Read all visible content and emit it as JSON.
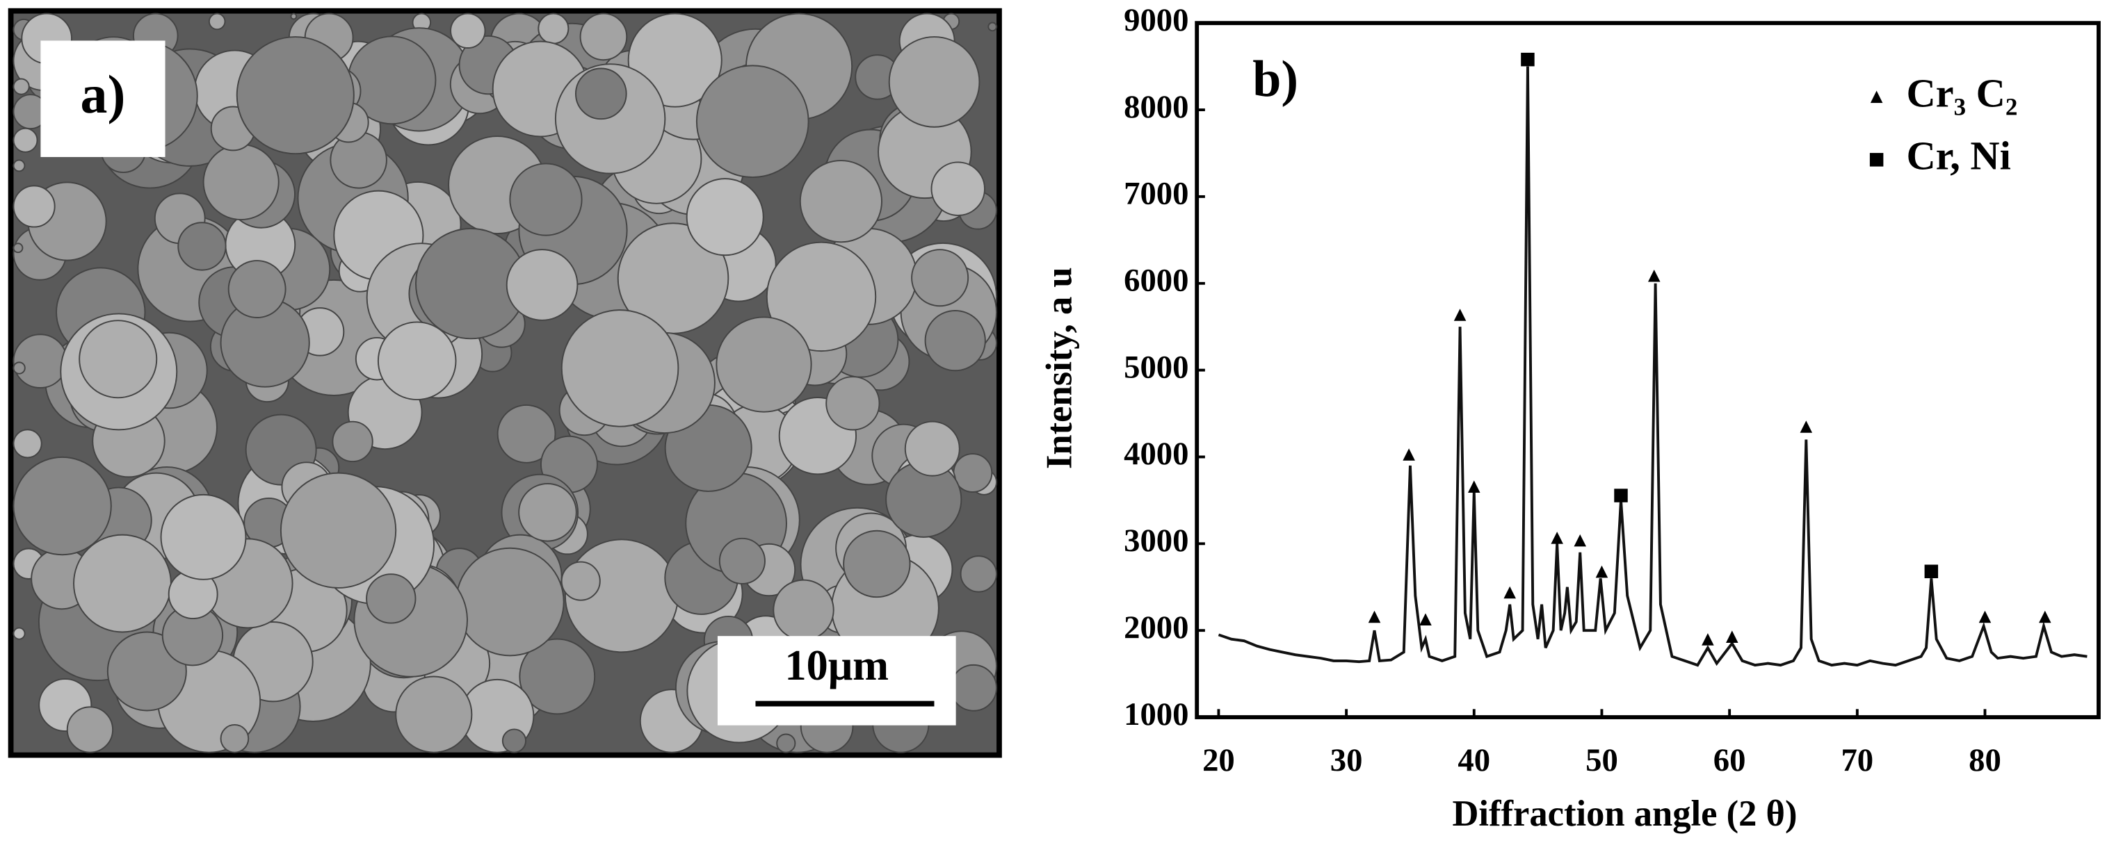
{
  "panel_a": {
    "label": "a)",
    "scale_bar": "10μm"
  },
  "chart_data": {
    "type": "line",
    "panel_label": "b)",
    "xlabel": "Diffraction angle (2 θ)",
    "ylabel": "Intensity, a u",
    "xlim": [
      18.3,
      88.9
    ],
    "ylim": [
      1000,
      9000
    ],
    "xticks": [
      20,
      30,
      40,
      50,
      60,
      70,
      80
    ],
    "yticks": [
      1000,
      2000,
      3000,
      4000,
      5000,
      6000,
      7000,
      8000,
      9000
    ],
    "grid": false,
    "legend": "upper right",
    "series": [
      {
        "color": "#111111",
        "x": [
          20,
          21,
          22,
          23,
          24,
          25,
          26,
          27,
          28,
          29,
          30,
          31,
          31.8,
          32.2,
          32.6,
          33.5,
          34.5,
          35.0,
          35.4,
          35.9,
          36.2,
          36.5,
          37.5,
          38.5,
          38.9,
          39.3,
          39.7,
          40.0,
          40.3,
          41,
          42,
          42.5,
          42.8,
          43.1,
          43.8,
          44.2,
          44.6,
          45.0,
          45.3,
          45.6,
          46.2,
          46.5,
          46.8,
          47.1,
          47.3,
          47.6,
          48.0,
          48.3,
          48.6,
          49.5,
          49.9,
          50.3,
          51.0,
          51.5,
          52.0,
          53,
          53.8,
          54.2,
          54.6,
          55.5,
          56.5,
          57.5,
          58.3,
          59,
          60.2,
          61,
          62,
          63,
          64,
          65,
          65.6,
          66.0,
          66.4,
          67,
          68,
          69,
          70,
          71,
          72,
          73,
          74,
          75,
          75.4,
          75.8,
          76.2,
          77,
          78,
          79,
          79.9,
          80.5,
          81,
          82,
          83,
          84,
          84.6,
          85.2,
          86,
          87,
          88
        ],
        "values": [
          1950,
          1900,
          1880,
          1820,
          1780,
          1750,
          1720,
          1700,
          1680,
          1650,
          1650,
          1640,
          1650,
          2000,
          1650,
          1660,
          1750,
          3900,
          2400,
          1800,
          1900,
          1700,
          1650,
          1700,
          5500,
          2200,
          1900,
          3600,
          2000,
          1700,
          1750,
          2000,
          2300,
          1900,
          2000,
          8500,
          2300,
          1900,
          2300,
          1800,
          2000,
          3000,
          2000,
          2200,
          2500,
          2000,
          2100,
          2900,
          2000,
          2000,
          2600,
          2000,
          2200,
          3500,
          2400,
          1800,
          2000,
          6000,
          2300,
          1700,
          1650,
          1600,
          1800,
          1620,
          1850,
          1650,
          1600,
          1620,
          1600,
          1650,
          1800,
          4200,
          1900,
          1650,
          1600,
          1620,
          1600,
          1650,
          1620,
          1600,
          1650,
          1700,
          1800,
          2600,
          1900,
          1680,
          1650,
          1700,
          2050,
          1750,
          1680,
          1700,
          1680,
          1700,
          2050,
          1750,
          1700,
          1720,
          1700
        ]
      },
      {
        "name": "Cr₃ C₂",
        "marker": "triangle",
        "color": "#000000",
        "x": [
          32.2,
          34.9,
          36.2,
          38.9,
          40.0,
          42.8,
          46.5,
          48.3,
          50.0,
          54.1,
          58.3,
          60.2,
          66.0,
          80.0,
          84.7
        ],
        "values": [
          2150,
          4020,
          2120,
          5630,
          3650,
          2430,
          3060,
          3030,
          2670,
          6080,
          1890,
          1920,
          4340,
          2150,
          2150
        ]
      },
      {
        "name": "Cr, Ni",
        "marker": "square",
        "color": "#000000",
        "x": [
          44.2,
          51.5,
          75.8
        ],
        "values": [
          8580,
          3555,
          2680
        ]
      }
    ]
  }
}
